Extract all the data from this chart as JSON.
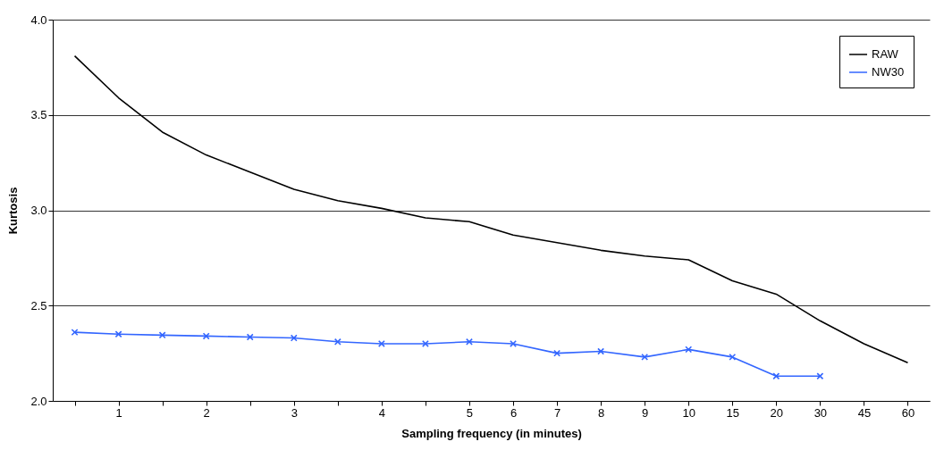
{
  "chart_data": {
    "type": "line",
    "xlabel": "Sampling frequency (in minutes)",
    "ylabel": "Kurtosis",
    "categories": [
      null,
      "1",
      null,
      "2",
      null,
      "3",
      null,
      "4",
      null,
      "5",
      "6",
      "7",
      "8",
      "9",
      "10",
      "15",
      "20",
      "30",
      "45",
      "60"
    ],
    "series": [
      {
        "name": "RAW",
        "color": "#000000",
        "marker": "none",
        "values": [
          3.81,
          3.59,
          3.41,
          3.29,
          3.2,
          3.11,
          3.05,
          3.01,
          2.96,
          2.94,
          2.87,
          2.83,
          2.79,
          2.76,
          2.74,
          2.63,
          2.56,
          2.42,
          2.3,
          2.2
        ]
      },
      {
        "name": "NW30",
        "color": "#3366ff",
        "marker": "cross",
        "values": [
          2.36,
          2.35,
          2.345,
          2.34,
          2.335,
          2.33,
          2.31,
          2.3,
          2.3,
          2.31,
          2.3,
          2.25,
          2.26,
          2.23,
          2.27,
          2.23,
          2.13,
          2.13,
          null,
          null
        ]
      }
    ],
    "ylim": [
      2,
      4
    ],
    "yticks": [
      {
        "value": 2,
        "label": "2.0"
      },
      2.5,
      {
        "value": 3,
        "label": "3.0"
      },
      3.5,
      {
        "value": 4,
        "label": "4.0"
      }
    ],
    "grid": "y",
    "legend": "top right"
  }
}
